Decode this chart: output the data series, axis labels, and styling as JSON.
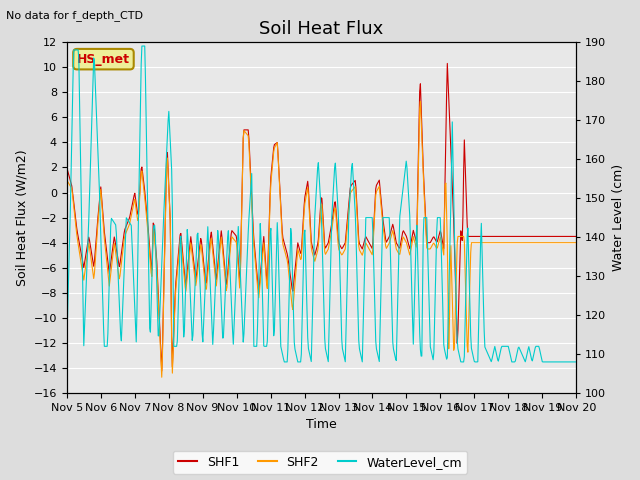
{
  "title": "Soil Heat Flux",
  "subtitle": "No data for f_depth_CTD",
  "xlabel": "Time",
  "ylabel_left": "Soil Heat Flux (W/m2)",
  "ylabel_right": "Water Level (cm)",
  "ylim_left": [
    -16,
    12
  ],
  "ylim_right": [
    100,
    190
  ],
  "legend_entries": [
    "SHF1",
    "SHF2",
    "WaterLevel_cm"
  ],
  "shf1_color": "#cc0000",
  "shf2_color": "#ff9900",
  "water_color": "#00cccc",
  "bg_color": "#dddddd",
  "plot_bg_color": "#e8e8e8",
  "annotation_box_facecolor": "#eeee99",
  "annotation_box_edgecolor": "#aa8800",
  "annotation_text": "HS_met",
  "title_fontsize": 13,
  "label_fontsize": 9,
  "tick_fontsize": 8
}
